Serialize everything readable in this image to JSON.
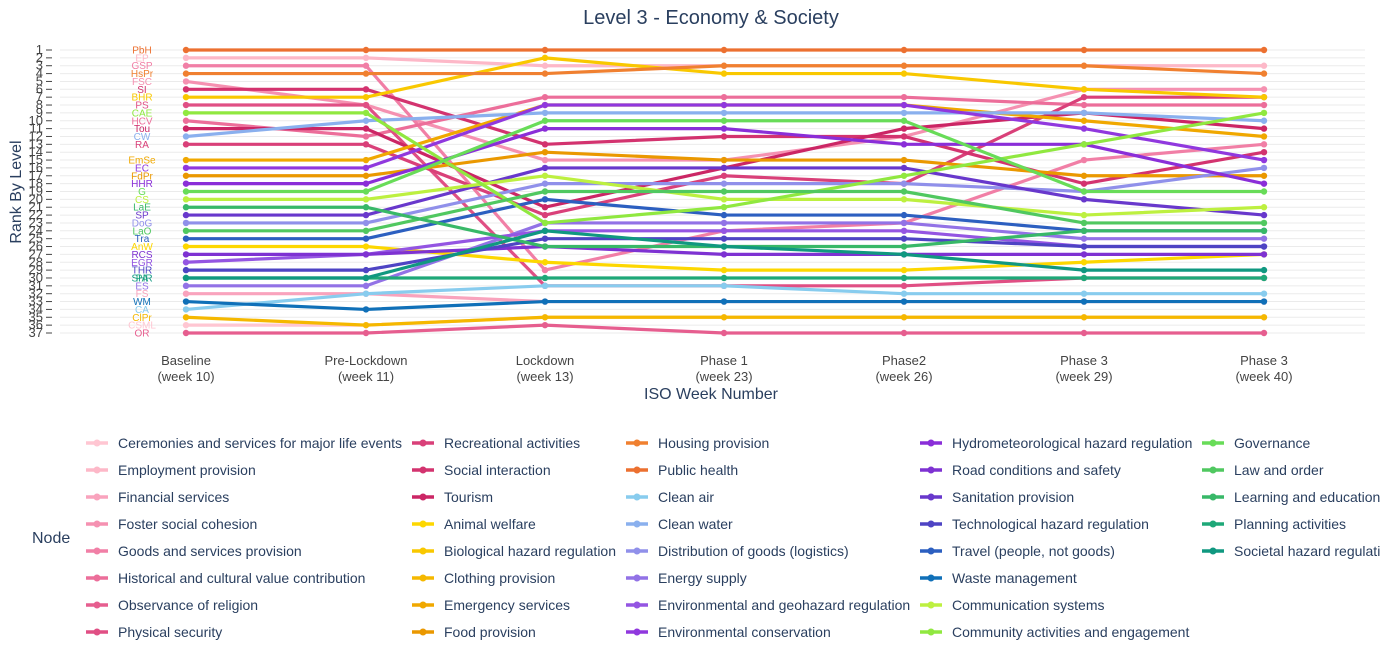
{
  "chart_data": {
    "type": "line",
    "title": "Level 3 - Economy & Society",
    "xlabel": "ISO Week Number",
    "ylabel": "Rank By Level",
    "legend_title": "Node",
    "legend_position": "bottom",
    "grid": true,
    "ylim": [
      37,
      1
    ],
    "y_reversed": true,
    "categories": [
      [
        "Baseline",
        "(week 10)"
      ],
      [
        "Pre-Lockdown",
        "(week 11)"
      ],
      [
        "Lockdown",
        "(week 13)"
      ],
      [
        "Phase 1",
        "(week 23)"
      ],
      [
        "Phase2",
        "(week 26)"
      ],
      [
        "Phase 3",
        "(week 29)"
      ],
      [
        "Phase 3",
        "(week 40)"
      ]
    ],
    "y_ticks": [
      1,
      2,
      3,
      4,
      5,
      6,
      7,
      8,
      9,
      10,
      11,
      12,
      13,
      14,
      15,
      16,
      17,
      18,
      19,
      20,
      21,
      22,
      23,
      24,
      25,
      26,
      27,
      28,
      29,
      30,
      31,
      32,
      33,
      34,
      35,
      36,
      37
    ],
    "series": [
      {
        "name": "Ceremonies and services for major life events",
        "abbr": "CSML",
        "color": "#ffc6d2",
        "values": [
          36,
          36,
          35,
          35,
          35,
          35,
          35
        ]
      },
      {
        "name": "Employment provision",
        "abbr": "EP",
        "color": "#fdb8c8",
        "values": [
          2,
          2,
          3,
          3,
          3,
          3,
          3
        ]
      },
      {
        "name": "Financial services",
        "abbr": "FS",
        "color": "#f9a3bd",
        "values": [
          32,
          32,
          33,
          33,
          33,
          33,
          33
        ]
      },
      {
        "name": "Foster social cohesion",
        "abbr": "FSC",
        "color": "#f591b1",
        "values": [
          5,
          8,
          15,
          15,
          12,
          6,
          6
        ]
      },
      {
        "name": "Goods and services provision",
        "abbr": "GSP",
        "color": "#f17fa6",
        "values": [
          3,
          3,
          29,
          24,
          23,
          15,
          13
        ]
      },
      {
        "name": "Historical and cultural value contribution",
        "abbr": "HCV",
        "color": "#ec6e9a",
        "values": [
          10,
          12,
          7,
          7,
          7,
          8,
          8
        ]
      },
      {
        "name": "Observance of religion",
        "abbr": "OR",
        "color": "#e65e8f",
        "values": [
          37,
          37,
          36,
          37,
          37,
          37,
          37
        ]
      },
      {
        "name": "Physical security",
        "abbr": "PS",
        "color": "#e04f84",
        "values": [
          8,
          8,
          31,
          31,
          31,
          30,
          30
        ]
      },
      {
        "name": "Recreational activities",
        "abbr": "RA",
        "color": "#d94079",
        "values": [
          13,
          13,
          22,
          17,
          18,
          7,
          7
        ]
      },
      {
        "name": "Social interaction",
        "abbr": "SI",
        "color": "#d3336f",
        "values": [
          6,
          6,
          13,
          12,
          12,
          18,
          14
        ]
      },
      {
        "name": "Tourism",
        "abbr": "Tou",
        "color": "#cb2665",
        "values": [
          11,
          11,
          21,
          16,
          11,
          9,
          11
        ]
      },
      {
        "name": "Animal welfare",
        "abbr": "AnW",
        "color": "#fdd700",
        "values": [
          26,
          26,
          28,
          29,
          29,
          28,
          27
        ]
      },
      {
        "name": "Biological hazard regulation",
        "abbr": "BHR",
        "color": "#f9c800",
        "values": [
          7,
          7,
          2,
          4,
          4,
          6,
          7
        ]
      },
      {
        "name": "Clothing provision",
        "abbr": "ClPr",
        "color": "#f5b800",
        "values": [
          35,
          36,
          35,
          35,
          35,
          35,
          35
        ]
      },
      {
        "name": "Emergency services",
        "abbr": "EmSe",
        "color": "#f0a800",
        "values": [
          15,
          15,
          8,
          8,
          8,
          10,
          12
        ]
      },
      {
        "name": "Food provision",
        "abbr": "FdPr",
        "color": "#ea9800",
        "values": [
          17,
          17,
          14,
          15,
          15,
          17,
          17
        ]
      },
      {
        "name": "Housing provision",
        "abbr": "HsPr",
        "color": "#f08030",
        "values": [
          4,
          4,
          4,
          3,
          3,
          3,
          4
        ]
      },
      {
        "name": "Public health",
        "abbr": "PbH",
        "color": "#ec7030",
        "values": [
          1,
          1,
          1,
          1,
          1,
          1,
          1
        ]
      },
      {
        "name": "Clean air",
        "abbr": "CA",
        "color": "#88ccee",
        "values": [
          34,
          32,
          31,
          31,
          32,
          32,
          32
        ]
      },
      {
        "name": "Clean water",
        "abbr": "CW",
        "color": "#8ab0ee",
        "values": [
          12,
          10,
          9,
          9,
          9,
          9,
          10
        ]
      },
      {
        "name": "Distribution of goods (logistics)",
        "abbr": "DoG",
        "color": "#9090ea",
        "values": [
          23,
          23,
          18,
          18,
          18,
          19,
          16
        ]
      },
      {
        "name": "Energy supply",
        "abbr": "ES",
        "color": "#9272e6",
        "values": [
          31,
          31,
          23,
          23,
          23,
          25,
          25
        ]
      },
      {
        "name": "Environmental and geohazard regulation",
        "abbr": "EGR",
        "color": "#9455e2",
        "values": [
          28,
          27,
          24,
          24,
          24,
          26,
          26
        ]
      },
      {
        "name": "Environmental conservation",
        "abbr": "EC",
        "color": "#9038de",
        "values": [
          16,
          16,
          8,
          8,
          8,
          11,
          15
        ]
      },
      {
        "name": "Hydrometeorological hazard regulation",
        "abbr": "HHR",
        "color": "#8a2ed8",
        "values": [
          18,
          18,
          11,
          11,
          13,
          13,
          18
        ]
      },
      {
        "name": "Road conditions and safety",
        "abbr": "RCS",
        "color": "#7e32d2",
        "values": [
          27,
          27,
          26,
          27,
          27,
          27,
          27
        ]
      },
      {
        "name": "Sanitation provision",
        "abbr": "SP",
        "color": "#6838cc",
        "values": [
          22,
          22,
          16,
          16,
          16,
          20,
          22
        ]
      },
      {
        "name": "Technological hazard regulation",
        "abbr": "THR",
        "color": "#4e44c4",
        "values": [
          29,
          29,
          25,
          25,
          25,
          26,
          26
        ]
      },
      {
        "name": "Travel (people, not goods)",
        "abbr": "Tra",
        "color": "#2c5fc0",
        "values": [
          25,
          25,
          20,
          22,
          22,
          24,
          24
        ]
      },
      {
        "name": "Waste management",
        "abbr": "WM",
        "color": "#1070b8",
        "values": [
          33,
          34,
          33,
          33,
          33,
          33,
          33
        ]
      },
      {
        "name": "Communication systems",
        "abbr": "CS",
        "color": "#bdf040",
        "values": [
          20,
          20,
          17,
          20,
          20,
          22,
          21
        ]
      },
      {
        "name": "Community activities and engagement",
        "abbr": "CAE",
        "color": "#90e840",
        "values": [
          9,
          9,
          23,
          21,
          17,
          13,
          9
        ]
      },
      {
        "name": "Governance",
        "abbr": "G",
        "color": "#68dc58",
        "values": [
          19,
          19,
          10,
          10,
          10,
          19,
          19
        ]
      },
      {
        "name": "Law and order",
        "abbr": "LaO",
        "color": "#50c860",
        "values": [
          24,
          24,
          19,
          19,
          19,
          23,
          23
        ]
      },
      {
        "name": "Learning and education",
        "abbr": "LaE",
        "color": "#38b868",
        "values": [
          21,
          21,
          26,
          26,
          26,
          24,
          24
        ]
      },
      {
        "name": "Planning activities",
        "abbr": "PA",
        "color": "#1ea878",
        "values": [
          30,
          30,
          30,
          30,
          30,
          30,
          30
        ]
      },
      {
        "name": "Societal hazard regulation",
        "abbr": "SHR",
        "color": "#109880",
        "values": [
          30,
          30,
          24,
          26,
          27,
          29,
          29
        ]
      }
    ]
  }
}
